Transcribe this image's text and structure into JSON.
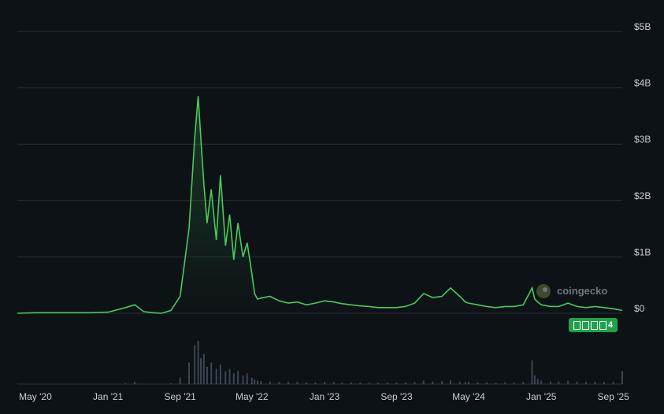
{
  "chart_data": {
    "type": "area",
    "series": [
      {
        "x": [
          "2020-03",
          "2020-05",
          "2020-08",
          "2020-11",
          "2021-01",
          "2021-03",
          "2021-04",
          "2021-05",
          "2021-06",
          "2021-07",
          "2021-08",
          "2021-09",
          "2021-10",
          "2021-10-20",
          "2021-11",
          "2021-11-10",
          "2021-11-20",
          "2021-12",
          "2021-12-15",
          "2022-01",
          "2022-01-15",
          "2022-02",
          "2022-02-15",
          "2022-03",
          "2022-03-15",
          "2022-04",
          "2022-04-15",
          "2022-05",
          "2022-05-10",
          "2022-05-20",
          "2022-06",
          "2022-07",
          "2022-08",
          "2022-09",
          "2022-10",
          "2022-11",
          "2022-12",
          "2023-01",
          "2023-02",
          "2023-03",
          "2023-04",
          "2023-05",
          "2023-06",
          "2023-07",
          "2023-08",
          "2023-09",
          "2023-10",
          "2023-11",
          "2023-12",
          "2024-01",
          "2024-02",
          "2024-03",
          "2024-04",
          "2024-04-20",
          "2024-05",
          "2024-06",
          "2024-07",
          "2024-08",
          "2024-09",
          "2024-10",
          "2024-11",
          "2024-12",
          "2024-12-10",
          "2024-12-20",
          "2025-01",
          "2025-02",
          "2025-03",
          "2025-04",
          "2025-05",
          "2025-06",
          "2025-07",
          "2025-08",
          "2025-09",
          "2025-10"
        ],
        "values": [
          0.0,
          0.01,
          0.01,
          0.01,
          0.02,
          0.1,
          0.15,
          0.03,
          0.01,
          0.0,
          0.05,
          0.3,
          1.5,
          3.1,
          3.85,
          3.1,
          2.3,
          1.6,
          2.2,
          1.3,
          2.45,
          1.2,
          1.75,
          0.95,
          1.6,
          1.0,
          1.25,
          0.7,
          0.35,
          0.25,
          0.27,
          0.3,
          0.22,
          0.18,
          0.2,
          0.15,
          0.18,
          0.22,
          0.2,
          0.17,
          0.15,
          0.13,
          0.12,
          0.1,
          0.1,
          0.1,
          0.12,
          0.18,
          0.35,
          0.28,
          0.3,
          0.45,
          0.3,
          0.2,
          0.18,
          0.15,
          0.12,
          0.1,
          0.12,
          0.12,
          0.15,
          0.45,
          0.25,
          0.2,
          0.15,
          0.12,
          0.12,
          0.18,
          0.12,
          0.1,
          0.12,
          0.1,
          0.08,
          0.05
        ]
      }
    ],
    "volume": [
      0.0,
      0.0,
      0.0,
      0.0,
      0.0,
      0.02,
      0.05,
      0.01,
      0.0,
      0.0,
      0.02,
      0.15,
      0.5,
      0.9,
      1.0,
      0.6,
      0.7,
      0.4,
      0.5,
      0.35,
      0.45,
      0.3,
      0.35,
      0.25,
      0.3,
      0.2,
      0.25,
      0.15,
      0.1,
      0.08,
      0.07,
      0.06,
      0.05,
      0.05,
      0.05,
      0.04,
      0.04,
      0.05,
      0.05,
      0.04,
      0.04,
      0.03,
      0.03,
      0.03,
      0.03,
      0.03,
      0.04,
      0.05,
      0.08,
      0.06,
      0.07,
      0.09,
      0.06,
      0.05,
      0.05,
      0.04,
      0.04,
      0.03,
      0.04,
      0.04,
      0.05,
      0.55,
      0.2,
      0.12,
      0.08,
      0.06,
      0.06,
      0.08,
      0.06,
      0.05,
      0.06,
      0.05,
      0.05,
      0.3
    ],
    "x_ticks": [
      "May '20",
      "Jan '21",
      "Sep '21",
      "May '22",
      "Jan '23",
      "Sep '23",
      "May '24",
      "Jan '25",
      "Sep '25"
    ],
    "x_tick_dates": [
      "2020-05",
      "2021-01",
      "2021-09",
      "2022-05",
      "2023-01",
      "2023-09",
      "2024-05",
      "2025-01",
      "2025-09"
    ],
    "y_ticks": [
      "$0",
      "$1B",
      "$2B",
      "$3B",
      "$4B",
      "$5B"
    ],
    "y_tick_values": [
      0,
      1,
      2,
      3,
      4,
      5
    ],
    "ylim": [
      0,
      5
    ],
    "y_unit": "B USD",
    "grid": true,
    "line_color": "#4cc95b",
    "volume_color": "#3a4652"
  },
  "watermark": {
    "text": "coingecko"
  },
  "badge": {
    "label": "4"
  }
}
